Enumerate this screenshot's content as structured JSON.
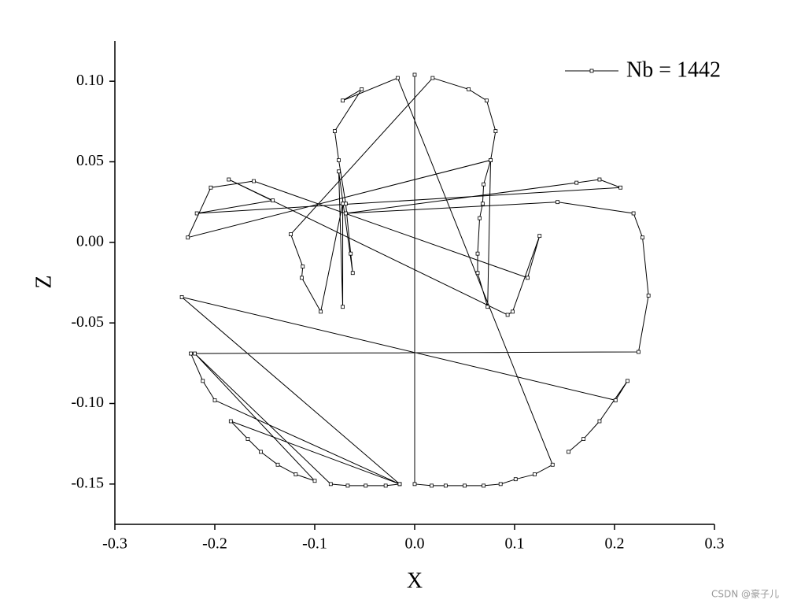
{
  "chart_data": {
    "type": "line",
    "x_label": "X",
    "y_label": "Z",
    "xlim": [
      -0.3,
      0.3
    ],
    "ylim": [
      -0.175,
      0.125
    ],
    "xticks": [
      -0.3,
      -0.2,
      -0.1,
      {
        "value": 0,
        "label": "0.0"
      },
      0.1,
      0.2,
      0.3
    ],
    "yticks": [
      {
        "value": -0.15,
        "label": "-0.15"
      },
      {
        "value": -0.1,
        "label": "-0.10"
      },
      {
        "value": -0.05,
        "label": "-0.05"
      },
      {
        "value": 0,
        "label": "0.00"
      },
      {
        "value": 0.05,
        "label": "0.05"
      },
      {
        "value": 0.1,
        "label": "0.10"
      }
    ],
    "legend_position": "upper right",
    "series": [
      {
        "name": "Nb = 1442",
        "color": "#000000",
        "x": [
          0.0,
          0.0,
          0.017,
          0.031,
          0.05,
          0.069,
          0.086,
          0.101,
          0.12,
          0.138,
          -0.017,
          -0.072,
          -0.053,
          -0.08,
          -0.076,
          -0.069,
          -0.064,
          -0.062,
          -0.076,
          -0.072,
          -0.072,
          -0.094,
          -0.113,
          -0.112,
          -0.124,
          0.018,
          0.054,
          0.072,
          0.081,
          0.076,
          0.069,
          0.068,
          0.065,
          0.063,
          0.063,
          0.073,
          0.076,
          -0.227,
          -0.204,
          -0.161,
          0.113,
          0.125,
          0.098,
          0.093,
          -0.186,
          -0.142,
          -0.218,
          0.206,
          0.185,
          0.162,
          -0.069,
          0.143,
          0.219,
          0.228,
          0.234,
          0.224,
          -0.224,
          -0.212,
          -0.2,
          -0.015,
          -0.184,
          -0.167,
          -0.154,
          -0.137,
          -0.119,
          -0.1,
          -0.22,
          -0.084,
          -0.067,
          -0.049,
          -0.029,
          -0.015,
          -0.233,
          0.201,
          0.213,
          0.185,
          0.169,
          0.154
        ],
        "values": [
          0.104,
          -0.15,
          -0.151,
          -0.151,
          -0.151,
          -0.151,
          -0.15,
          -0.147,
          -0.144,
          -0.138,
          0.102,
          0.088,
          0.095,
          0.069,
          0.051,
          0.024,
          -0.007,
          -0.019,
          0.044,
          -0.04,
          0.024,
          -0.043,
          -0.022,
          -0.015,
          0.005,
          0.102,
          0.095,
          0.088,
          0.069,
          0.051,
          0.036,
          0.024,
          0.015,
          -0.007,
          -0.019,
          -0.04,
          0.051,
          0.003,
          0.034,
          0.038,
          -0.022,
          0.004,
          -0.043,
          -0.045,
          0.039,
          0.026,
          0.018,
          0.034,
          0.039,
          0.037,
          0.018,
          0.025,
          0.018,
          0.003,
          -0.033,
          -0.068,
          -0.069,
          -0.086,
          -0.098,
          -0.15,
          -0.111,
          -0.122,
          -0.13,
          -0.138,
          -0.144,
          -0.148,
          -0.069,
          -0.15,
          -0.151,
          -0.151,
          -0.151,
          -0.15,
          -0.034,
          -0.098,
          -0.086,
          -0.111,
          -0.122,
          -0.13
        ]
      }
    ],
    "watermark": "CSDN @豪子儿"
  }
}
